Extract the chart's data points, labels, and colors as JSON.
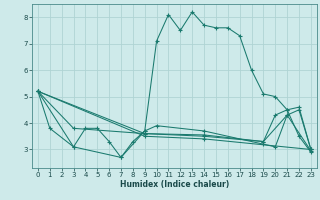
{
  "xlabel": "Humidex (Indice chaleur)",
  "bg_color": "#ceeaea",
  "grid_color": "#afd4d4",
  "line_color": "#1a7a6e",
  "series": [
    {
      "x": [
        0,
        1,
        3,
        4,
        5,
        6,
        7,
        8,
        9,
        10,
        11,
        12,
        13,
        14,
        15,
        16,
        17,
        18,
        19,
        20,
        21,
        22,
        23
      ],
      "y": [
        5.2,
        3.8,
        3.1,
        3.8,
        3.8,
        3.3,
        2.7,
        3.3,
        3.7,
        7.1,
        8.1,
        7.5,
        8.2,
        7.7,
        7.6,
        7.6,
        7.3,
        6.0,
        5.1,
        5.0,
        4.5,
        3.5,
        2.9
      ]
    },
    {
      "x": [
        0,
        3,
        7,
        9,
        10,
        14,
        19,
        20,
        21,
        22,
        23
      ],
      "y": [
        5.2,
        3.1,
        2.7,
        3.7,
        3.9,
        3.7,
        3.2,
        3.1,
        4.3,
        4.5,
        3.0
      ]
    },
    {
      "x": [
        0,
        3,
        9,
        14,
        19,
        21,
        23
      ],
      "y": [
        5.2,
        3.8,
        3.6,
        3.55,
        3.3,
        4.3,
        2.95
      ]
    },
    {
      "x": [
        0,
        9,
        14,
        19,
        20,
        21,
        22,
        23
      ],
      "y": [
        5.2,
        3.6,
        3.5,
        3.3,
        4.3,
        4.5,
        4.6,
        3.0
      ]
    },
    {
      "x": [
        0,
        9,
        14,
        23
      ],
      "y": [
        5.2,
        3.5,
        3.4,
        3.0
      ]
    }
  ],
  "xlim": [
    -0.5,
    23.5
  ],
  "ylim": [
    2.3,
    8.5
  ],
  "yticks": [
    3,
    4,
    5,
    6,
    7,
    8
  ],
  "xticks": [
    0,
    1,
    2,
    3,
    4,
    5,
    6,
    7,
    8,
    9,
    10,
    11,
    12,
    13,
    14,
    15,
    16,
    17,
    18,
    19,
    20,
    21,
    22,
    23
  ]
}
